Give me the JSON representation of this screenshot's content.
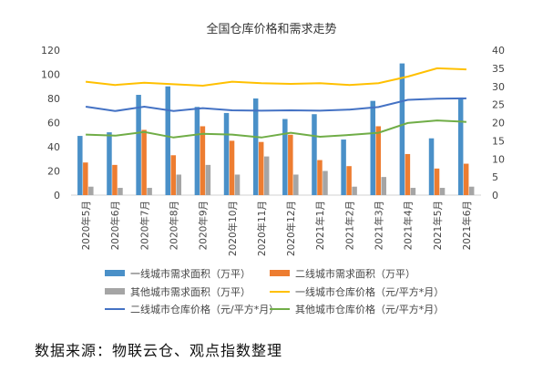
{
  "chart_data": {
    "type": "bar+line",
    "title": "全国仓库价格和需求走势",
    "categories": [
      "2020年5月",
      "2020年6月",
      "2020年7月",
      "2020年8月",
      "2020年9月",
      "2020年10月",
      "2020年11月",
      "2020年12月",
      "2021年1月",
      "2021年2月",
      "2021年3月",
      "2021年4月",
      "2021年5月",
      "2021年6月"
    ],
    "left_axis": {
      "ylim": [
        0,
        120
      ],
      "ticks": [
        "0",
        "20",
        "40",
        "60",
        "80",
        "100",
        "120"
      ]
    },
    "right_axis": {
      "ylim": [
        0,
        40
      ],
      "ticks": [
        "0",
        "5",
        "10",
        "15",
        "20",
        "25",
        "30",
        "35",
        "40"
      ]
    },
    "grid": false,
    "legend_position": "bottom",
    "bar_series": [
      {
        "name": "一线城市需求面积（万平）",
        "color": "#4a90c8",
        "values": [
          49,
          52,
          83,
          90,
          73,
          68,
          80,
          63,
          67,
          46,
          78,
          109,
          47,
          80
        ]
      },
      {
        "name": "二线城市需求面积（万平）",
        "color": "#ed7d31",
        "values": [
          27,
          25,
          54,
          33,
          57,
          45,
          44,
          50,
          29,
          24,
          57,
          34,
          22,
          26
        ]
      },
      {
        "name": "其他城市需求面积（万平）",
        "color": "#a5a5a5",
        "values": [
          7,
          6,
          6,
          17,
          25,
          17,
          32,
          17,
          20,
          7,
          15,
          6,
          6,
          7
        ]
      }
    ],
    "line_series": [
      {
        "name": "一线城市仓库价格（元/平方*月）",
        "color": "#ffc000",
        "values": [
          31.3,
          30.4,
          31.0,
          30.6,
          30.2,
          31.3,
          30.9,
          30.7,
          30.9,
          30.4,
          30.9,
          32.7,
          35.0,
          34.7
        ]
      },
      {
        "name": "二线城市仓库价格（元/平方*月）",
        "color": "#4472c4",
        "values": [
          24.4,
          23.2,
          24.4,
          23.2,
          24.0,
          23.4,
          23.3,
          23.4,
          23.3,
          23.6,
          24.3,
          26.3,
          26.6,
          26.7
        ]
      },
      {
        "name": "其他城市仓库价格（元/平方*月）",
        "color": "#70ad47",
        "values": [
          16.7,
          16.4,
          17.4,
          15.9,
          16.9,
          16.7,
          15.9,
          17.2,
          16.1,
          16.6,
          17.2,
          19.9,
          20.6,
          20.2
        ]
      }
    ]
  },
  "footer": {
    "source": "数据来源：物联云仓、观点指数整理"
  }
}
